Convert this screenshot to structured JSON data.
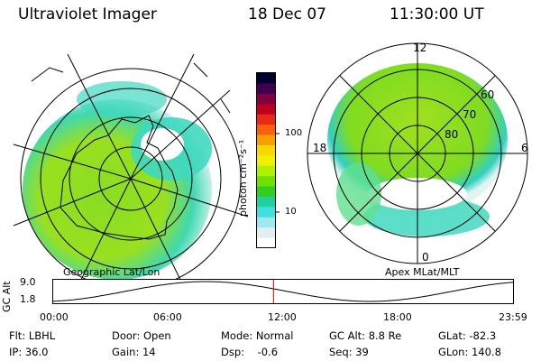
{
  "header": {
    "instrument": "Ultraviolet Imager",
    "date": "18 Dec 07",
    "time": "11:30:00 UT"
  },
  "left_panel": {
    "caption": "Geographic Lat/Lon"
  },
  "right_panel": {
    "caption": "Apex MLat/MLT",
    "mlt_labels": {
      "top": "12",
      "left": "18",
      "right": "6",
      "bottom": "0"
    },
    "mlat_labels": [
      "60",
      "70",
      "80"
    ]
  },
  "colorbar": {
    "unit_label": "photon cm⁻²s⁻¹",
    "ticks": [
      "100",
      "10"
    ],
    "colors": [
      "#000030",
      "#400050",
      "#800040",
      "#c00020",
      "#e82818",
      "#f86010",
      "#f8a000",
      "#f8d800",
      "#f0f000",
      "#b0f000",
      "#70e000",
      "#30d020",
      "#20d0a0",
      "#40e0e0",
      "#a0e8f0",
      "#e0f0f0",
      "#ffffff"
    ]
  },
  "gc_alt_plot": {
    "ylabel": "GC Alt",
    "yticks": [
      "9.0",
      "1.8"
    ],
    "xticks": [
      "00:00",
      "06:00",
      "12:00",
      "18:00",
      "23:59"
    ],
    "current_time_hours": 11.5,
    "marker_color": "#d00000"
  },
  "info": {
    "flt": "Flt: LBHL",
    "ip": "IP: 36.0",
    "door": "Door: Open",
    "gain": "Gain: 14",
    "mode": "Mode: Normal",
    "dsp": "Dsp:    -0.6",
    "gcalt": "GC Alt: 8.8 Re",
    "seq": "Seq: 39",
    "glat": "GLat: -82.3",
    "glon": "GLon: 140.8"
  }
}
